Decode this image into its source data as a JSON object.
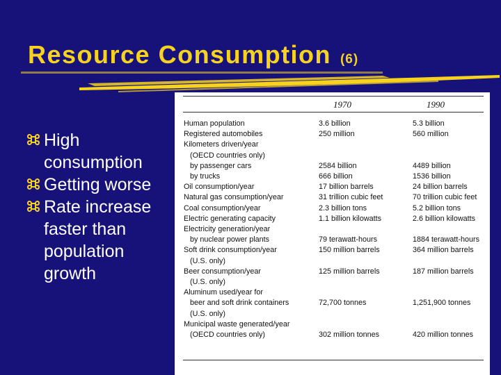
{
  "slide": {
    "title": "Resource Consumption",
    "title_suffix": "(6)",
    "bullets": [
      "High consumption",
      "Getting worse",
      "Rate increase faster than population growth"
    ]
  },
  "table": {
    "headers": [
      "1970",
      "1990"
    ],
    "rows": [
      [
        "Human population",
        "3.6 billion",
        "5.3 billion"
      ],
      [
        "Registered automobiles",
        "250 million",
        "560 million"
      ],
      [
        "Kilometers driven/year",
        "",
        ""
      ],
      [
        "(OECD countries only)",
        "",
        ""
      ],
      [
        "by passenger cars",
        "2584 billion",
        "4489 billion"
      ],
      [
        "by trucks",
        "666 billion",
        "1536 billion"
      ],
      [
        "Oil consumption/year",
        "17 billion barrels",
        "24 billion barrels"
      ],
      [
        "Natural gas consumption/year",
        "31 trillion cubic feet",
        "70 trillion cubic feet"
      ],
      [
        "Coal consumption/year",
        "2.3 billion tons",
        "5.2 billion tons"
      ],
      [
        "Electric generating capacity",
        "1.1 billion kilowatts",
        "2.6 billion kilowatts"
      ],
      [
        "Electricity generation/year",
        "",
        ""
      ],
      [
        "by nuclear power plants",
        "79 terawatt-hours",
        "1884 terawatt-hours"
      ],
      [
        "Soft drink consumption/year",
        "150 million barrels",
        "364 million barrels"
      ],
      [
        "(U.S. only)",
        "",
        ""
      ],
      [
        "Beer consumption/year",
        "125 million barrels",
        "187 million barrels"
      ],
      [
        "(U.S. only)",
        "",
        ""
      ],
      [
        "Aluminum used/year for",
        "",
        ""
      ],
      [
        "beer and soft drink containers",
        "72,700 tonnes",
        "1,251,900 tonnes"
      ],
      [
        "(U.S. only)",
        "",
        ""
      ],
      [
        "Municipal waste generated/year",
        "",
        ""
      ],
      [
        "(OECD countries only)",
        "302 million tonnes",
        "420 million tonnes"
      ]
    ],
    "indented_rows": [
      3,
      4,
      5,
      11,
      13,
      15,
      17,
      18,
      20
    ]
  },
  "colors": {
    "background": "#16127a",
    "title": "#f7d21f",
    "text": "#ffffff",
    "table_background": "#ffffff"
  }
}
